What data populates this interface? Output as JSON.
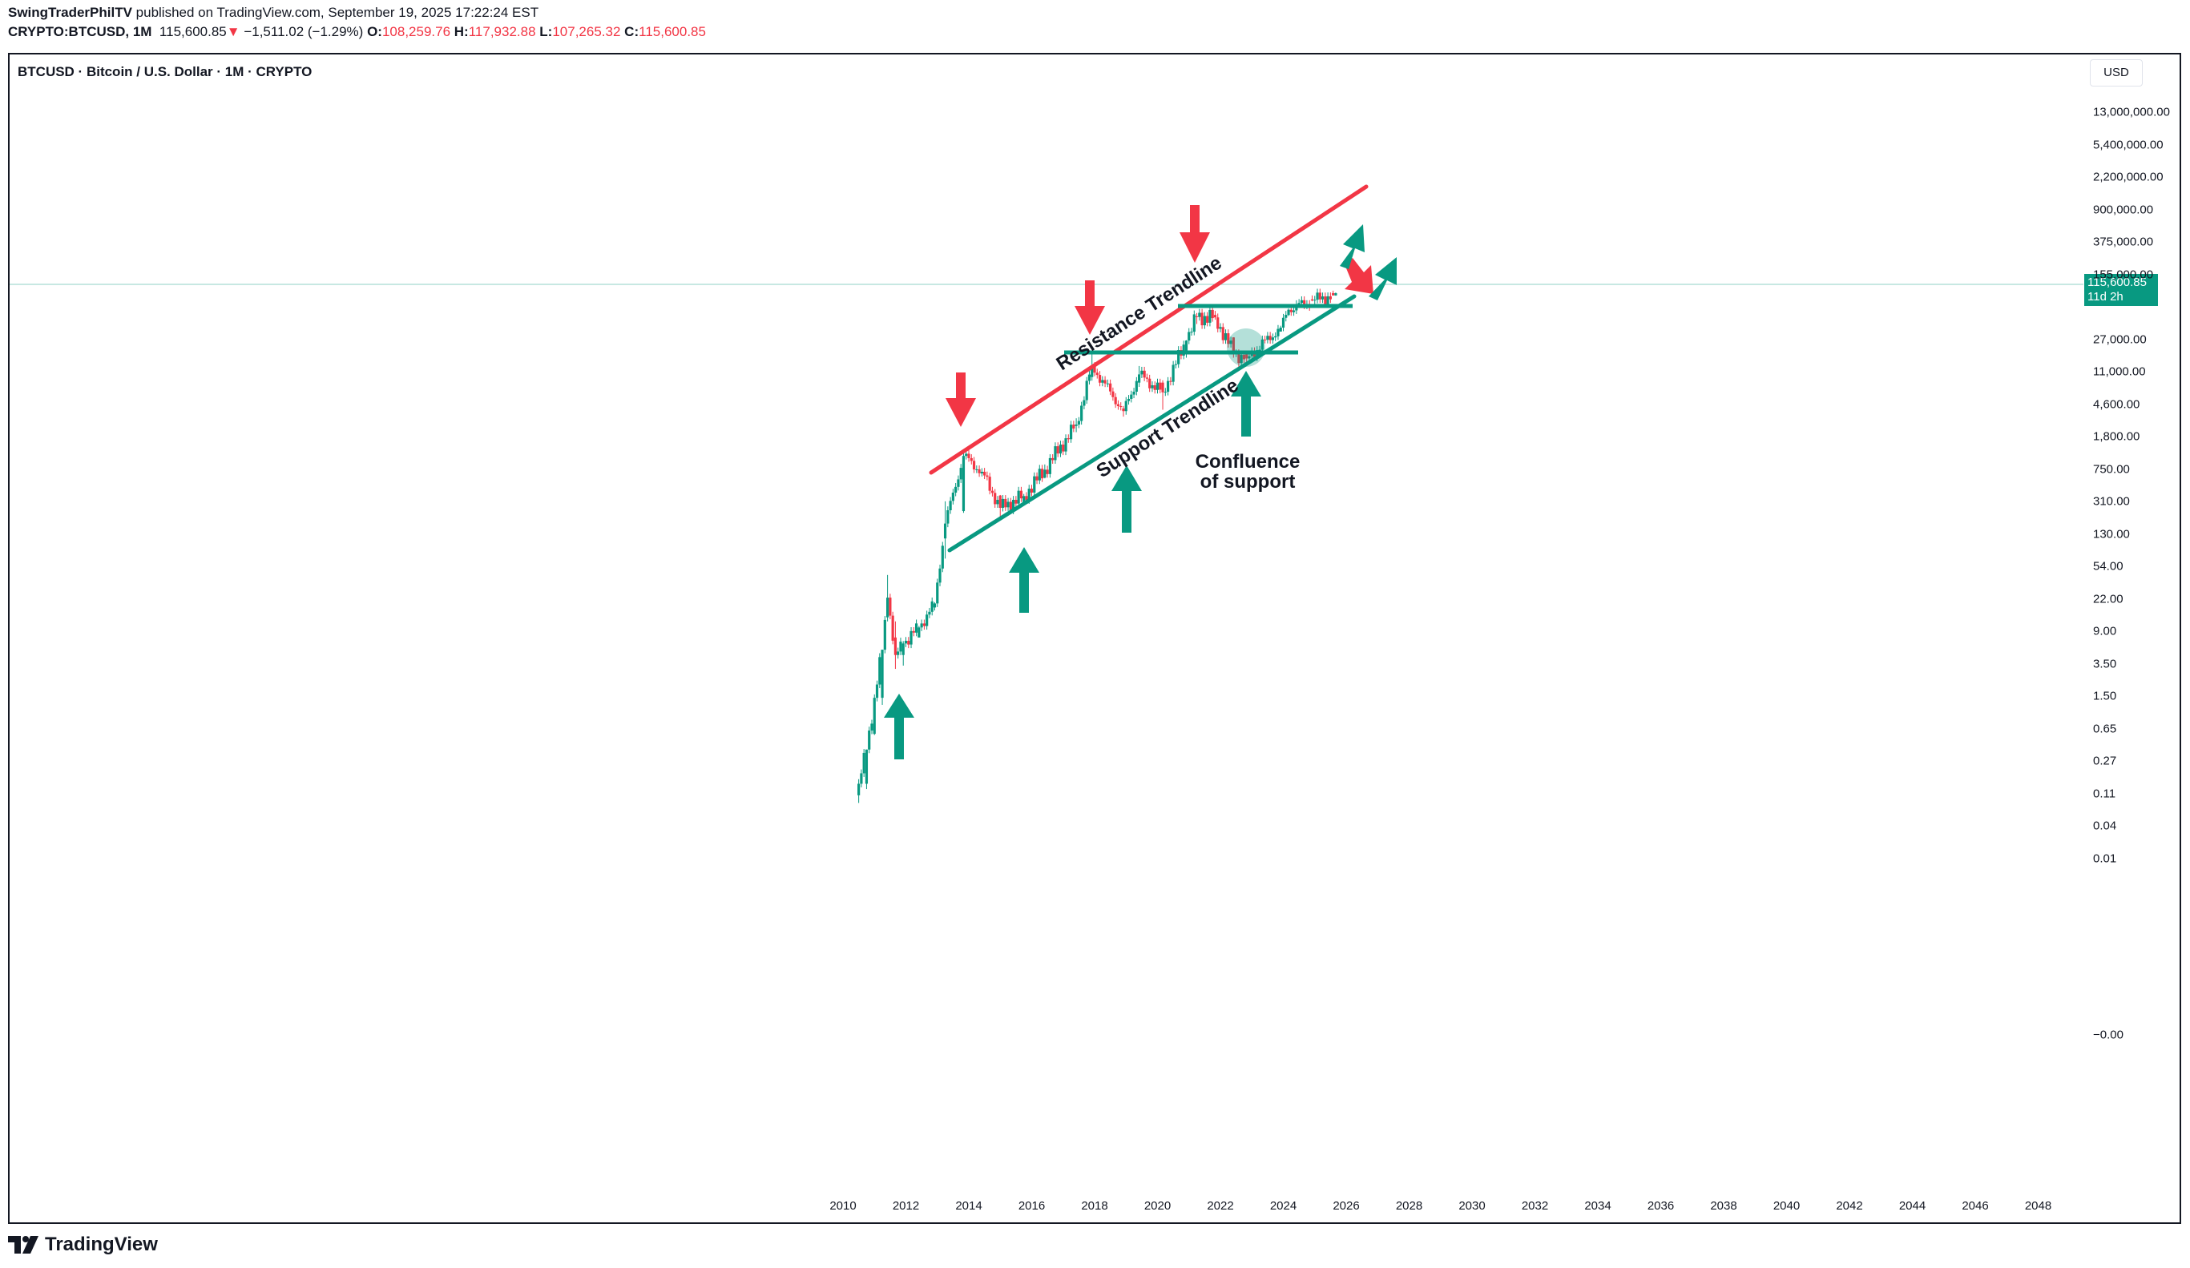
{
  "header": {
    "author": "SwingTraderPhilTV",
    "published": "published on TradingView.com, September 19, 2025 17:22:24 EST",
    "symbol": "CRYPTO:BTCUSD, 1M",
    "last": "115,600.85",
    "change_arrow": "▼",
    "change": "−1,511.02 (−1.29%)",
    "o_label": "O:",
    "o_value": "108,259.76",
    "h_label": "H:",
    "h_value": "117,932.88",
    "l_label": "L:",
    "l_value": "107,265.32",
    "c_label": "C:",
    "c_value": "115,600.85"
  },
  "legend": {
    "title": "BTCUSD · Bitcoin / U.S. Dollar · 1M · CRYPTO"
  },
  "currency_button": "USD",
  "price_label": {
    "value": "115,600.85",
    "countdown": "11d 2h"
  },
  "footer": {
    "brand": "TradingView"
  },
  "colors": {
    "up": "#089981",
    "down": "#f23645",
    "support": "#089981",
    "resistance": "#f23645"
  },
  "chart_data": {
    "type": "candlestick",
    "title": "",
    "yscale": "log",
    "y_ticks": [
      "13,000,000.00",
      "5,400,000.00",
      "2,200,000.00",
      "900,000.00",
      "375,000.00",
      "155,000.00",
      "27,000.00",
      "11,000.00",
      "4,600.00",
      "1,800.00",
      "750.00",
      "310.00",
      "130.00",
      "54.00",
      "22.00",
      "9.00",
      "3.50",
      "1.50",
      "0.65",
      "0.27",
      "0.11",
      "0.04",
      "0.01",
      "−0.00"
    ],
    "x_ticks": [
      "2010",
      "2012",
      "2014",
      "2016",
      "2018",
      "2020",
      "2022",
      "2024",
      "2026",
      "2028",
      "2030",
      "2032",
      "2034",
      "2036",
      "2038",
      "2040",
      "2042",
      "2044",
      "2046",
      "2048"
    ],
    "series": [
      {
        "points": [
          [
            "2010-07",
            0.05,
            0.08,
            0.04,
            0.07
          ],
          [
            "2010-10",
            0.07,
            0.19,
            0.06,
            0.19
          ],
          [
            "2011-01",
            0.3,
            0.95,
            0.29,
            0.86
          ],
          [
            "2011-04",
            0.86,
            3.5,
            0.7,
            3.5
          ],
          [
            "2011-06",
            9,
            31,
            8,
            16
          ],
          [
            "2011-09",
            5,
            8,
            2,
            3
          ],
          [
            "2011-12",
            3,
            4.5,
            2.2,
            4.2
          ],
          [
            "2012-06",
            5,
            7,
            5,
            6.7
          ],
          [
            "2012-12",
            12,
            14,
            11,
            13.5
          ],
          [
            "2013-04",
            90,
            266,
            50,
            139
          ],
          [
            "2013-11",
            200,
            1150,
            190,
            1000
          ],
          [
            "2014-06",
            600,
            700,
            550,
            630
          ],
          [
            "2015-01",
            315,
            320,
            170,
            220
          ],
          [
            "2015-10",
            240,
            330,
            235,
            310
          ],
          [
            "2016-06",
            530,
            780,
            520,
            670
          ],
          [
            "2017-06",
            2400,
            3000,
            2000,
            2500
          ],
          [
            "2017-12",
            10000,
            19800,
            9000,
            13800
          ],
          [
            "2018-12",
            4000,
            4300,
            3150,
            3700
          ],
          [
            "2019-06",
            8500,
            13800,
            7500,
            10800
          ],
          [
            "2020-03",
            8500,
            9100,
            3850,
            6400
          ],
          [
            "2020-12",
            19700,
            29300,
            17600,
            29000
          ],
          [
            "2021-04",
            58800,
            64800,
            47000,
            57700
          ],
          [
            "2021-11",
            61300,
            69000,
            53300,
            57000
          ],
          [
            "2022-06",
            31800,
            31900,
            17600,
            19900
          ],
          [
            "2022-11",
            20500,
            21400,
            15500,
            17200
          ],
          [
            "2023-12",
            37700,
            44700,
            37600,
            42300
          ],
          [
            "2024-03",
            61100,
            73800,
            59300,
            71300
          ],
          [
            "2024-12",
            96400,
            108300,
            91200,
            93400
          ],
          [
            "2025-08",
            115800,
            124400,
            108000,
            108200
          ],
          [
            "2025-09",
            108259.76,
            117932.88,
            107265.32,
            115600.85
          ]
        ]
      }
    ],
    "annotations": [
      {
        "text": "Resistance Trendline"
      },
      {
        "text": "Support Trendline"
      },
      {
        "text": "Confluence"
      },
      {
        "text": "of support"
      }
    ]
  }
}
